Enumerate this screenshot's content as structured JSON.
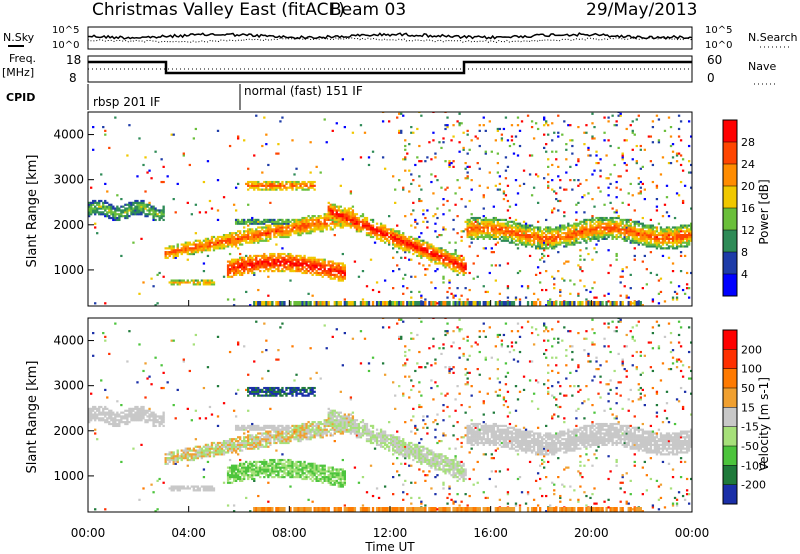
{
  "header": {
    "station": "Christmas Valley East (fitACF)",
    "beam": "Beam 03",
    "date": "29/May/2013"
  },
  "noise_panel": {
    "left_label": "N.Sky",
    "right_label": "N.Search",
    "tick_top": "10^5",
    "tick_bottom": "10^0"
  },
  "freq_panel": {
    "left_label_1": "Freq.",
    "left_label_2": "[MHz]",
    "right_label": "Nave",
    "left_ticks": [
      "18",
      "8"
    ],
    "right_ticks": [
      "60",
      "0"
    ]
  },
  "cpid_panel": {
    "label": "CPID",
    "modes": [
      {
        "name": "rbsp 201 IF",
        "start_h": 0.0
      },
      {
        "name": "normal (fast) 151 IF",
        "start_h": 6.0
      }
    ]
  },
  "chart_data": [
    {
      "type": "heatmap",
      "name": "power",
      "xlabel": "Time UT",
      "ylabel": "Slant Range [km]",
      "x_range_h": [
        0,
        24
      ],
      "ylim": [
        200,
        4500
      ],
      "y_ticks": [
        1000,
        2000,
        3000,
        4000
      ],
      "colorbar_label": "Power [dB]",
      "colorbar_ticks": [
        "28",
        "24",
        "20",
        "16",
        "12",
        "8",
        "4"
      ],
      "colorbar_colors": [
        "#0000ff",
        "#1e3ca8",
        "#2e8b57",
        "#6abf3a",
        "#f0c800",
        "#ff8c00",
        "#ff4500",
        "#ff0000"
      ]
    },
    {
      "type": "heatmap",
      "name": "velocity",
      "xlabel": "Time UT",
      "ylabel": "Slant Range [km]",
      "x_range_h": [
        0,
        24
      ],
      "ylim": [
        200,
        4500
      ],
      "y_ticks": [
        1000,
        2000,
        3000,
        4000
      ],
      "colorbar_label": "Velocity [m s-1]",
      "colorbar_ticks": [
        "200",
        "100",
        "50",
        "15",
        "-15",
        "-50",
        "-100",
        "-200"
      ],
      "colorbar_colors": [
        "#1a2fa8",
        "#1f7a3a",
        "#4cc43c",
        "#a6e07a",
        "#c8c8c8",
        "#f0a030",
        "#ff7a00",
        "#ff3000",
        "#ff0000"
      ]
    }
  ],
  "x_axis": {
    "ticks": [
      "00:00",
      "04:00",
      "08:00",
      "12:00",
      "16:00",
      "20:00",
      "00:00"
    ],
    "label": "Time UT"
  }
}
